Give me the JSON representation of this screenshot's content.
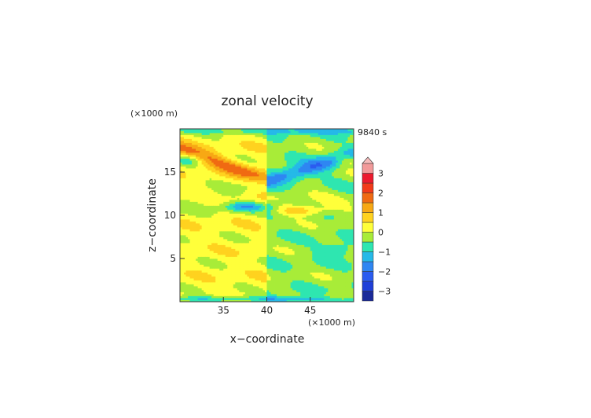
{
  "chart_data": {
    "type": "heatmap",
    "title": "zonal velocity",
    "xlabel": "x−coordinate",
    "ylabel": "z−coordinate",
    "x_unit": "(×1000 m)",
    "y_unit": "(×1000 m)",
    "time_label": "9840 s",
    "xlim": [
      30,
      50
    ],
    "ylim": [
      0,
      20
    ],
    "x_ticks": [
      35,
      40,
      45
    ],
    "y_ticks": [
      5,
      10,
      15
    ],
    "colorbar": {
      "ticks": [
        3,
        2,
        1,
        0,
        -1,
        -2,
        -3
      ],
      "tick_labels": [
        "3",
        "2",
        "1",
        "0",
        "−1",
        "−2",
        "−3"
      ],
      "levels": [
        {
          "from": -3.5,
          "to": -3.0,
          "color": "#1a2a9a"
        },
        {
          "from": -3.0,
          "to": -2.5,
          "color": "#1f3fd8"
        },
        {
          "from": -2.5,
          "to": -2.0,
          "color": "#2b5cf0"
        },
        {
          "from": -2.0,
          "to": -1.5,
          "color": "#2f86f2"
        },
        {
          "from": -1.5,
          "to": -1.0,
          "color": "#25b9e8"
        },
        {
          "from": -1.0,
          "to": -0.5,
          "color": "#2ee6b0"
        },
        {
          "from": -0.5,
          "to": 0.0,
          "color": "#a8ec38"
        },
        {
          "from": 0.0,
          "to": 0.5,
          "color": "#ffff3a"
        },
        {
          "from": 0.5,
          "to": 1.0,
          "color": "#ffd21f"
        },
        {
          "from": 1.0,
          "to": 1.5,
          "color": "#f7a814"
        },
        {
          "from": 1.5,
          "to": 2.0,
          "color": "#f06a12"
        },
        {
          "from": 2.0,
          "to": 2.5,
          "color": "#f23a1a"
        },
        {
          "from": 2.5,
          "to": 3.0,
          "color": "#ec1a2e"
        },
        {
          "from": 3.0,
          "to": 3.5,
          "color": "#f29a9a"
        },
        {
          "from": 3.5,
          "to": 4.0,
          "color": "#f7bcbc"
        }
      ]
    },
    "grid": false,
    "legend_position": "right",
    "description_values": "contour levels of zonal velocity (m/s); mostly near 0 with positive bands near z=13-15 and z=10-11 on the right, negative bands near z=11 (left-center) and z=13-15 (right)"
  }
}
